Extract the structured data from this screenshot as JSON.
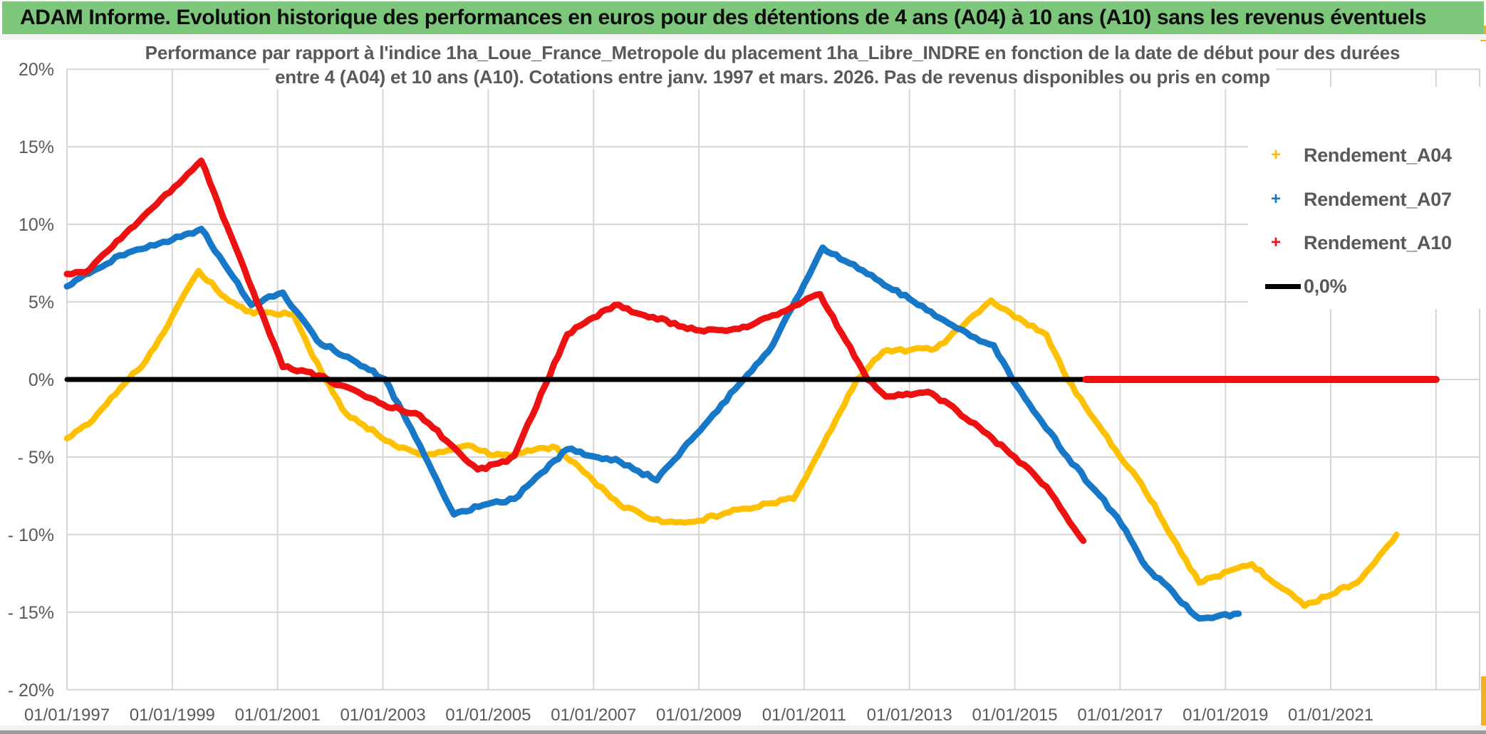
{
  "header": {
    "title": "ADAM Informe. Evolution historique des performances en euros pour des détentions de 4 ans (A04) à 10 ans (A10) sans les revenus éventuels"
  },
  "chart": {
    "subtitle_line1": "Performance par rapport à l'indice 1ha_Loue_France_Metropole  du placement 1ha_Libre_INDRE en fonction de la date de début pour des durées",
    "subtitle_line2": "entre 4 (A04) et 10 ans (A10). Cotations entre janv. 1997 et mars. 2026. Pas de revenus disponibles ou pris en comp",
    "legend": [
      {
        "label": "Rendement_A04",
        "marker": "+",
        "color": "#FFC000"
      },
      {
        "label": "Rendement_A07",
        "marker": "+",
        "color": "#1878C8"
      },
      {
        "label": "Rendement_A10",
        "marker": "+",
        "color": "#EE1111"
      },
      {
        "label": "0,0%",
        "marker": "line",
        "color": "#000000"
      }
    ],
    "y_tick_labels": [
      "20%",
      "15%",
      "10%",
      "5%",
      "0%",
      "- 5%",
      "- 10%",
      "- 15%",
      "- 20%"
    ],
    "x_tick_labels": [
      "01/01/1997",
      "01/01/1999",
      "01/01/2001",
      "01/01/2003",
      "01/01/2005",
      "01/01/2007",
      "01/01/2009",
      "01/01/2011",
      "01/01/2013",
      "01/01/2015",
      "01/01/2017",
      "01/01/2019",
      "01/01/2021"
    ],
    "colors": {
      "header_green": "#7DC77D",
      "gold_frame": "#EFB123",
      "grid": "#D6D6D6",
      "axis_text": "#595959",
      "series_a04": "#FFC000",
      "series_a07": "#1878C8",
      "series_a10": "#EE1111",
      "zero_line": "#000000"
    }
  },
  "chart_data": {
    "type": "line",
    "x_unit": "decimal_year",
    "x_axis_ticks_years": [
      1997,
      1999,
      2001,
      2003,
      2005,
      2007,
      2009,
      2011,
      2013,
      2015,
      2017,
      2019,
      2021
    ],
    "y_axis_ticks_pct": [
      20,
      15,
      10,
      5,
      0,
      -5,
      -10,
      -15,
      -20
    ],
    "xlim": [
      1997.0,
      2023.83
    ],
    "ylim": [
      -20,
      20
    ],
    "grid": true,
    "legend_position": "upper-right-inside",
    "series": [
      {
        "name": "Rendement_A04",
        "color": "#FFC000",
        "width": 8.5,
        "jitter": true,
        "points": [
          [
            1997.0,
            -3.8
          ],
          [
            1997.4,
            -2.9
          ],
          [
            1997.75,
            -1.6
          ],
          [
            1998.17,
            0.0
          ],
          [
            1998.5,
            1.2
          ],
          [
            1998.75,
            2.6
          ],
          [
            1999.5,
            7.0
          ],
          [
            2000.0,
            5.3
          ],
          [
            2000.4,
            4.4
          ],
          [
            2000.7,
            4.3
          ],
          [
            2001.3,
            4.2
          ],
          [
            2001.6,
            2.0
          ],
          [
            2001.9,
            0.0
          ],
          [
            2002.3,
            -2.2
          ],
          [
            2003.3,
            -4.4
          ],
          [
            2003.8,
            -4.9
          ],
          [
            2004.4,
            -4.4
          ],
          [
            2004.7,
            -4.3
          ],
          [
            2005.1,
            -4.9
          ],
          [
            2005.5,
            -4.8
          ],
          [
            2005.9,
            -4.5
          ],
          [
            2006.3,
            -4.4
          ],
          [
            2007.5,
            -8.1
          ],
          [
            2008.3,
            -9.2
          ],
          [
            2009.0,
            -9.1
          ],
          [
            2009.5,
            -8.6
          ],
          [
            2010.3,
            -8.0
          ],
          [
            2010.8,
            -7.7
          ],
          [
            2011.2,
            -5.2
          ],
          [
            2012.0,
            0.0
          ],
          [
            2012.5,
            1.8
          ],
          [
            2013.0,
            1.9
          ],
          [
            2013.5,
            2.0
          ],
          [
            2014.0,
            3.4
          ],
          [
            2014.55,
            5.1
          ],
          [
            2015.0,
            4.0
          ],
          [
            2015.6,
            2.9
          ],
          [
            2016.0,
            0.0
          ],
          [
            2017.0,
            -5.0
          ],
          [
            2017.4,
            -6.7
          ],
          [
            2018.5,
            -13.1
          ],
          [
            2018.8,
            -12.7
          ],
          [
            2019.5,
            -11.9
          ],
          [
            2020.5,
            -14.6
          ],
          [
            2021.5,
            -13.1
          ],
          [
            2022.25,
            -10.0
          ]
        ]
      },
      {
        "name": "Rendement_A07",
        "color": "#1878C8",
        "width": 9,
        "jitter": true,
        "points": [
          [
            1997.0,
            6.0
          ],
          [
            1998.0,
            8.0
          ],
          [
            1999.0,
            9.0
          ],
          [
            1999.55,
            9.7
          ],
          [
            2000.5,
            4.8
          ],
          [
            2001.1,
            5.6
          ],
          [
            2001.75,
            2.5
          ],
          [
            2002.5,
            1.1
          ],
          [
            2003.05,
            0.0
          ],
          [
            2004.35,
            -8.7
          ],
          [
            2004.9,
            -8.1
          ],
          [
            2005.5,
            -7.7
          ],
          [
            2006.5,
            -4.5
          ],
          [
            2007.5,
            -5.3
          ],
          [
            2008.2,
            -6.5
          ],
          [
            2009.85,
            0.0
          ],
          [
            2010.4,
            2.2
          ],
          [
            2011.35,
            8.5
          ],
          [
            2012.2,
            6.8
          ],
          [
            2013.0,
            5.2
          ],
          [
            2013.9,
            3.3
          ],
          [
            2014.25,
            2.7
          ],
          [
            2014.6,
            2.2
          ],
          [
            2014.95,
            0.0
          ],
          [
            2016.0,
            -5.0
          ],
          [
            2016.95,
            -8.9
          ],
          [
            2017.5,
            -12.1
          ],
          [
            2018.5,
            -15.4
          ],
          [
            2019.25,
            -15.1
          ]
        ]
      },
      {
        "name": "Rendement_A10",
        "color": "#EE1111",
        "width": 9,
        "jitter": true,
        "points": [
          [
            1997.0,
            6.8
          ],
          [
            1997.35,
            6.9
          ],
          [
            1999.55,
            14.1
          ],
          [
            2001.1,
            0.8
          ],
          [
            2001.55,
            0.5
          ],
          [
            2001.95,
            0.0
          ],
          [
            2003.0,
            -1.6
          ],
          [
            2003.7,
            -2.3
          ],
          [
            2004.8,
            -5.8
          ],
          [
            2005.35,
            -5.3
          ],
          [
            2005.5,
            -4.9
          ],
          [
            2006.5,
            2.9
          ],
          [
            2007.4,
            4.8
          ],
          [
            2008.7,
            3.4
          ],
          [
            2009.1,
            3.1
          ],
          [
            2009.6,
            3.2
          ],
          [
            2010.0,
            3.5
          ],
          [
            2011.3,
            5.5
          ],
          [
            2012.2,
            0.0
          ],
          [
            2012.55,
            -1.1
          ],
          [
            2013.35,
            -0.8
          ],
          [
            2013.9,
            -2.0
          ],
          [
            2015.0,
            -5.0
          ],
          [
            2015.6,
            -6.9
          ],
          [
            2016.3,
            -10.4
          ]
        ]
      },
      {
        "name": "zero_reference_0_0_pct",
        "color": "#000000",
        "width": 7,
        "jitter": false,
        "points": [
          [
            1997.0,
            0
          ],
          [
            2016.3,
            0
          ]
        ]
      },
      {
        "name": "Rendement_A10_zero_tail",
        "color": "#EE1111",
        "width": 10,
        "jitter": false,
        "points": [
          [
            2016.35,
            0
          ],
          [
            2023.0,
            0
          ]
        ]
      }
    ]
  }
}
